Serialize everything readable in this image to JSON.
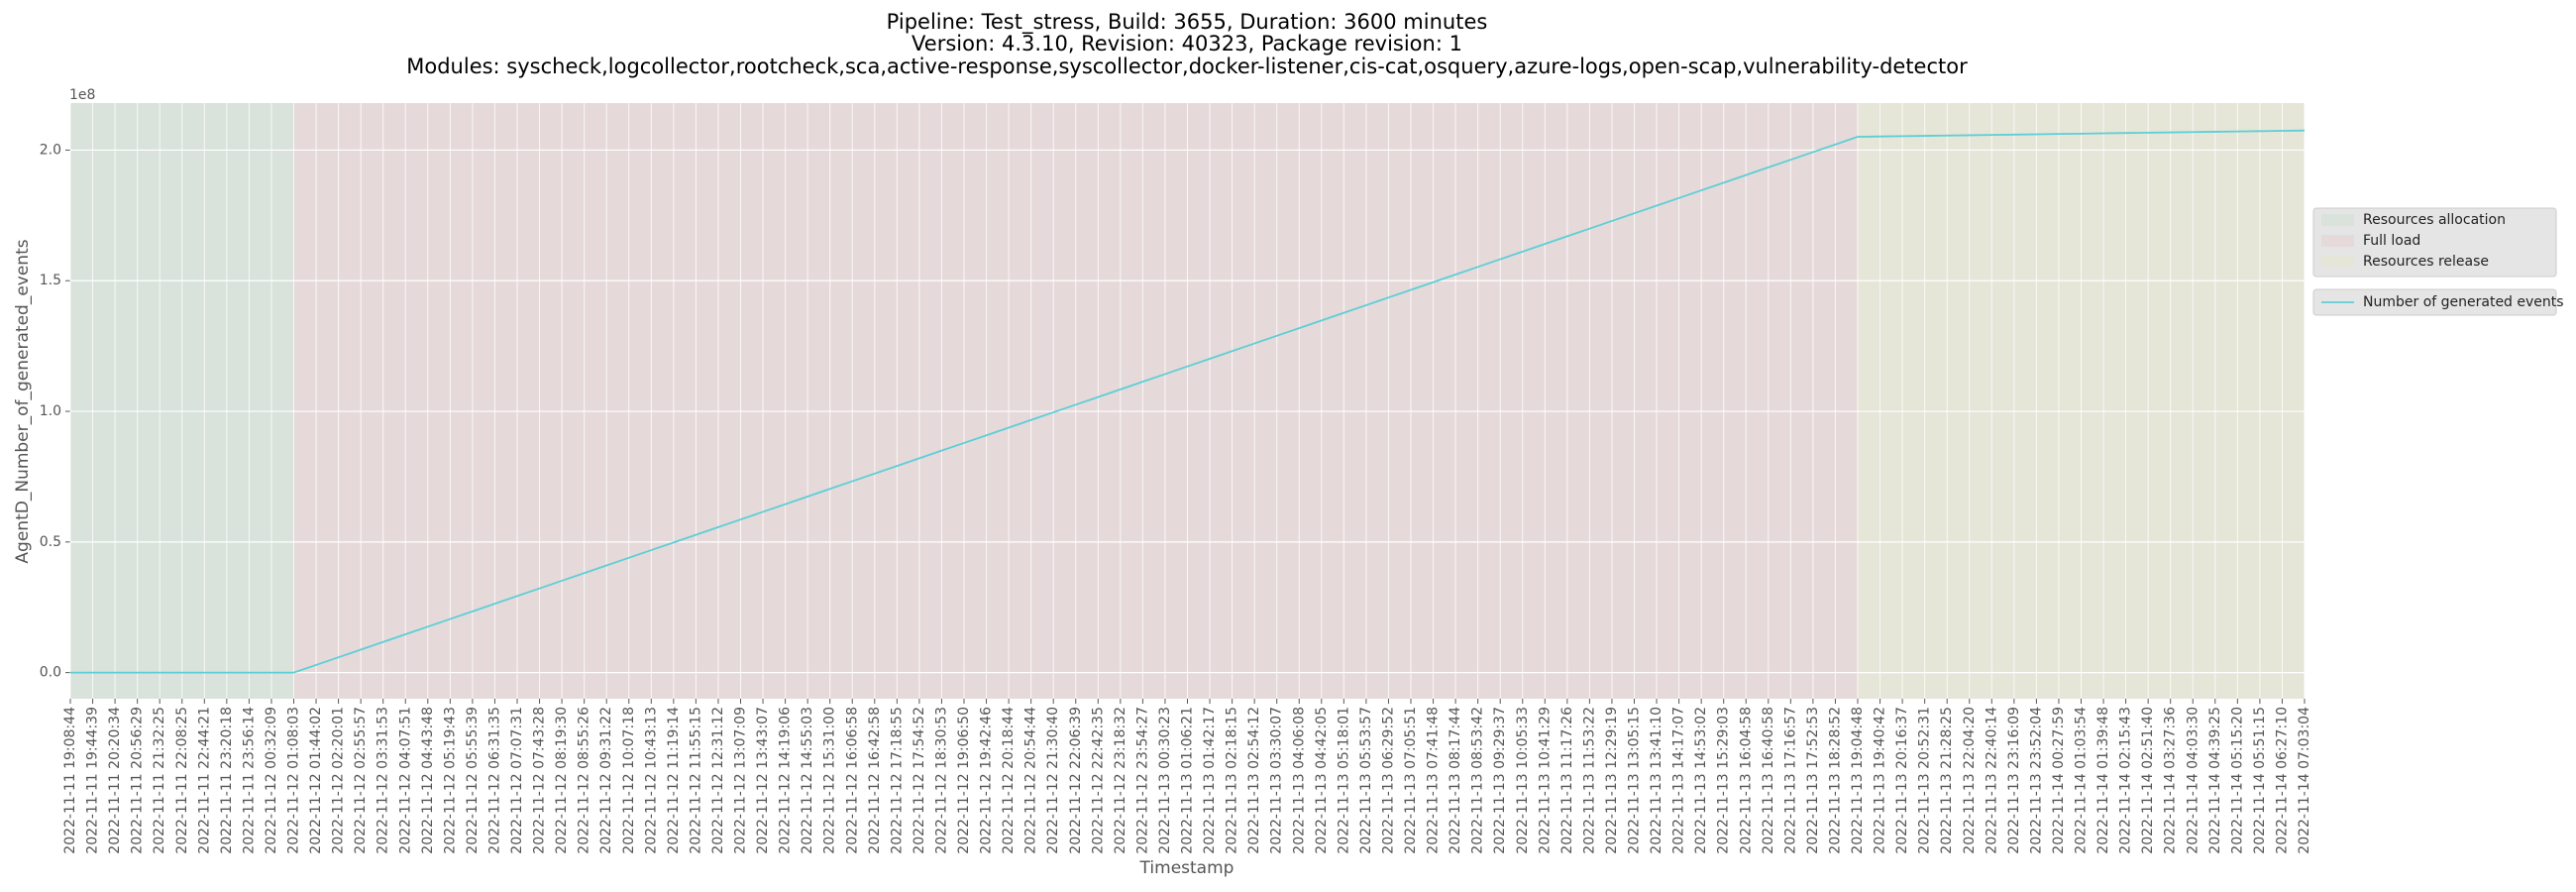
{
  "chart_data": {
    "type": "line",
    "title": [
      "Pipeline: Test_stress, Build: 3655, Duration: 3600 minutes",
      "Version: 4.3.10, Revision: 40323, Package revision: 1",
      "Modules: syscheck,logcollector,rootcheck,sca,active-response,syscollector,docker-listener,cis-cat,osquery,azure-logs,open-scap,vulnerability-detector"
    ],
    "xlabel": "Timestamp",
    "ylabel": "AgentD_Number_of_generated_events",
    "y_offset_label": "1e8",
    "categories": [
      "2022-11-11 19:08:44",
      "2022-11-11 19:44:39",
      "2022-11-11 20:20:34",
      "2022-11-11 20:56:29",
      "2022-11-11 21:32:25",
      "2022-11-11 22:08:25",
      "2022-11-11 22:44:21",
      "2022-11-11 23:20:18",
      "2022-11-11 23:56:14",
      "2022-11-12 00:32:09",
      "2022-11-12 01:08:03",
      "2022-11-12 01:44:02",
      "2022-11-12 02:20:01",
      "2022-11-12 02:55:57",
      "2022-11-12 03:31:53",
      "2022-11-12 04:07:51",
      "2022-11-12 04:43:48",
      "2022-11-12 05:19:43",
      "2022-11-12 05:55:39",
      "2022-11-12 06:31:35",
      "2022-11-12 07:07:31",
      "2022-11-12 07:43:28",
      "2022-11-12 08:19:30",
      "2022-11-12 08:55:26",
      "2022-11-12 09:31:22",
      "2022-11-12 10:07:18",
      "2022-11-12 10:43:13",
      "2022-11-12 11:19:14",
      "2022-11-12 11:55:15",
      "2022-11-12 12:31:12",
      "2022-11-12 13:07:09",
      "2022-11-12 13:43:07",
      "2022-11-12 14:19:06",
      "2022-11-12 14:55:03",
      "2022-11-12 15:31:00",
      "2022-11-12 16:06:58",
      "2022-11-12 16:42:58",
      "2022-11-12 17:18:55",
      "2022-11-12 17:54:52",
      "2022-11-12 18:30:53",
      "2022-11-12 19:06:50",
      "2022-11-12 19:42:46",
      "2022-11-12 20:18:44",
      "2022-11-12 20:54:44",
      "2022-11-12 21:30:40",
      "2022-11-12 22:06:39",
      "2022-11-12 22:42:35",
      "2022-11-12 23:18:32",
      "2022-11-12 23:54:27",
      "2022-11-13 00:30:23",
      "2022-11-13 01:06:21",
      "2022-11-13 01:42:17",
      "2022-11-13 02:18:15",
      "2022-11-13 02:54:12",
      "2022-11-13 03:30:07",
      "2022-11-13 04:06:08",
      "2022-11-13 04:42:05",
      "2022-11-13 05:18:01",
      "2022-11-13 05:53:57",
      "2022-11-13 06:29:52",
      "2022-11-13 07:05:51",
      "2022-11-13 07:41:48",
      "2022-11-13 08:17:44",
      "2022-11-13 08:53:42",
      "2022-11-13 09:29:37",
      "2022-11-13 10:05:33",
      "2022-11-13 10:41:29",
      "2022-11-13 11:17:26",
      "2022-11-13 11:53:22",
      "2022-11-13 12:29:19",
      "2022-11-13 13:05:15",
      "2022-11-13 13:41:10",
      "2022-11-13 14:17:07",
      "2022-11-13 14:53:02",
      "2022-11-13 15:29:03",
      "2022-11-13 16:04:58",
      "2022-11-13 16:40:58",
      "2022-11-13 17:16:57",
      "2022-11-13 17:52:53",
      "2022-11-13 18:28:52",
      "2022-11-13 19:04:48",
      "2022-11-13 19:40:42",
      "2022-11-13 20:16:37",
      "2022-11-13 20:52:31",
      "2022-11-13 21:28:25",
      "2022-11-13 22:04:20",
      "2022-11-13 22:40:14",
      "2022-11-13 23:16:09",
      "2022-11-13 23:52:04",
      "2022-11-14 00:27:59",
      "2022-11-14 01:03:54",
      "2022-11-14 01:39:48",
      "2022-11-14 02:15:43",
      "2022-11-14 02:51:40",
      "2022-11-14 03:27:36",
      "2022-11-14 04:03:30",
      "2022-11-14 04:39:25",
      "2022-11-14 05:15:20",
      "2022-11-14 05:51:15",
      "2022-11-14 06:27:10",
      "2022-11-14 07:03:04"
    ],
    "series": [
      {
        "name": "Number of generated events",
        "color": "#5ccfd6",
        "values": [
          0,
          0,
          0,
          0,
          0,
          0,
          0,
          0,
          0,
          0,
          0,
          2930000,
          5860000,
          8790000,
          11720000,
          14650000,
          17580000,
          20510000,
          23440000,
          26370000,
          29300000,
          32230000,
          35160000,
          38090000,
          41020000,
          43950000,
          46880000,
          49810000,
          52740000,
          55670000,
          58600000,
          61530000,
          64460000,
          67390000,
          70320000,
          73250000,
          76180000,
          79110000,
          82040000,
          84970000,
          87900000,
          90830000,
          93760000,
          96690000,
          99620000,
          102550000,
          105480000,
          108410000,
          111340000,
          114270000,
          117200000,
          120130000,
          123060000,
          125990000,
          128920000,
          131850000,
          134780000,
          137710000,
          140640000,
          143570000,
          146500000,
          149430000,
          152360000,
          155290000,
          158220000,
          161150000,
          164080000,
          167010000,
          169940000,
          172870000,
          175800000,
          178730000,
          181660000,
          184590000,
          187520000,
          190450000,
          193380000,
          196310000,
          199240000,
          202170000,
          205100000,
          205220000,
          205340000,
          205460000,
          205580000,
          205700000,
          205820000,
          205940000,
          206060000,
          206180000,
          206300000,
          206420000,
          206540000,
          206660000,
          206780000,
          206900000,
          207020000,
          207140000,
          207260000,
          207380000,
          207500000
        ]
      }
    ],
    "regions": [
      {
        "name": "Resources allocation",
        "color": "#d9e2db",
        "start": "2022-11-11 19:08:44",
        "end": "2022-11-12 01:08:03"
      },
      {
        "name": "Full load",
        "color": "#e6d9da",
        "start": "2022-11-12 01:08:03",
        "end": "2022-11-13 19:04:48"
      },
      {
        "name": "Resources release",
        "color": "#e5e5d8",
        "start": "2022-11-13 19:04:48",
        "end": "2022-11-14 07:03:04"
      }
    ],
    "ylim": [
      -10000000,
      218000000
    ],
    "yticks": [
      {
        "value": 0,
        "label": "0.0"
      },
      {
        "value": 50000000,
        "label": "0.5"
      },
      {
        "value": 100000000,
        "label": "1.0"
      },
      {
        "value": 150000000,
        "label": "1.5"
      },
      {
        "value": 200000000,
        "label": "2.0"
      }
    ],
    "grid": true,
    "background": "#e5e5e5",
    "legend_position": "right"
  }
}
